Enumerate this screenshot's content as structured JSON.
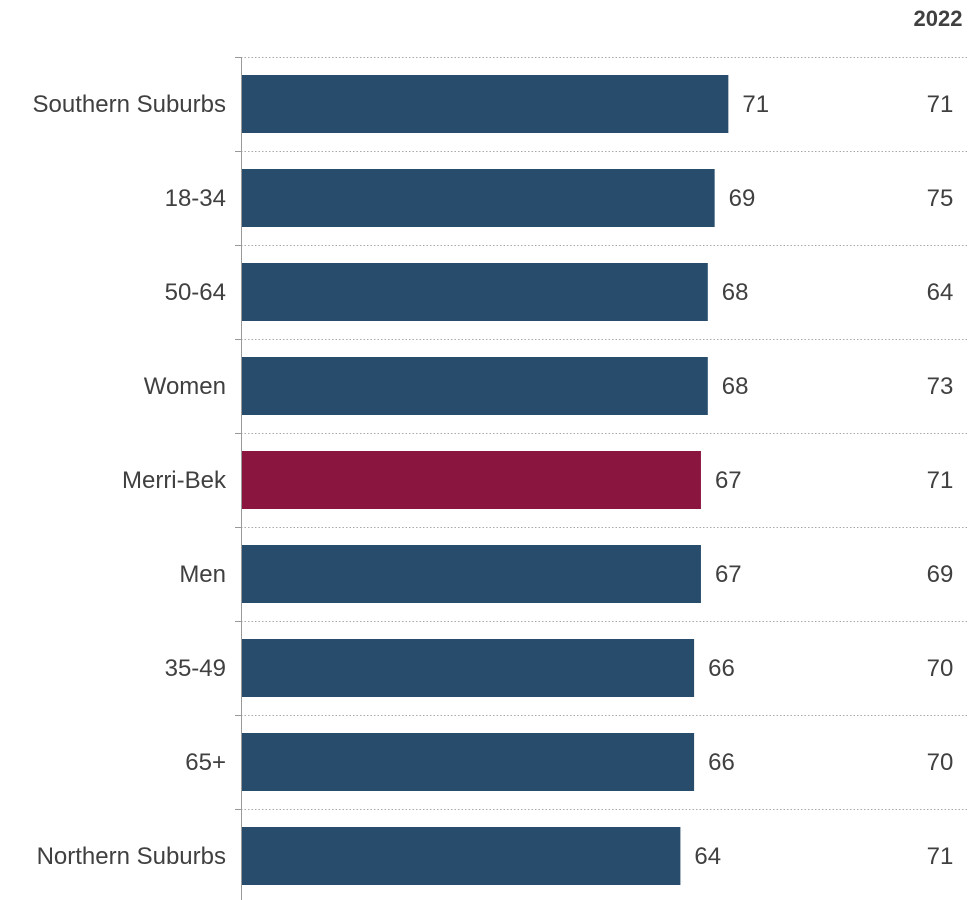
{
  "chart_data": {
    "type": "bar",
    "orientation": "horizontal",
    "categories": [
      "Southern Suburbs",
      "18-34",
      "50-64",
      "Women",
      "Merri-Bek",
      "Men",
      "35-49",
      "65+",
      "Northern Suburbs"
    ],
    "series": [
      {
        "values": [
          71,
          69,
          68,
          68,
          67,
          67,
          66,
          66,
          64
        ]
      }
    ],
    "comparison_column": {
      "header": "2022",
      "values": [
        71,
        75,
        64,
        73,
        71,
        69,
        70,
        70,
        71
      ]
    },
    "highlight_category": "Merri-Bek",
    "colors": {
      "bar": "#284C6C",
      "highlight": "#8A153E",
      "text": "#404040",
      "grid": "#AAAAAA"
    },
    "xlim": [
      0,
      100
    ],
    "grid": "horizontal-dotted",
    "legend": "none"
  }
}
